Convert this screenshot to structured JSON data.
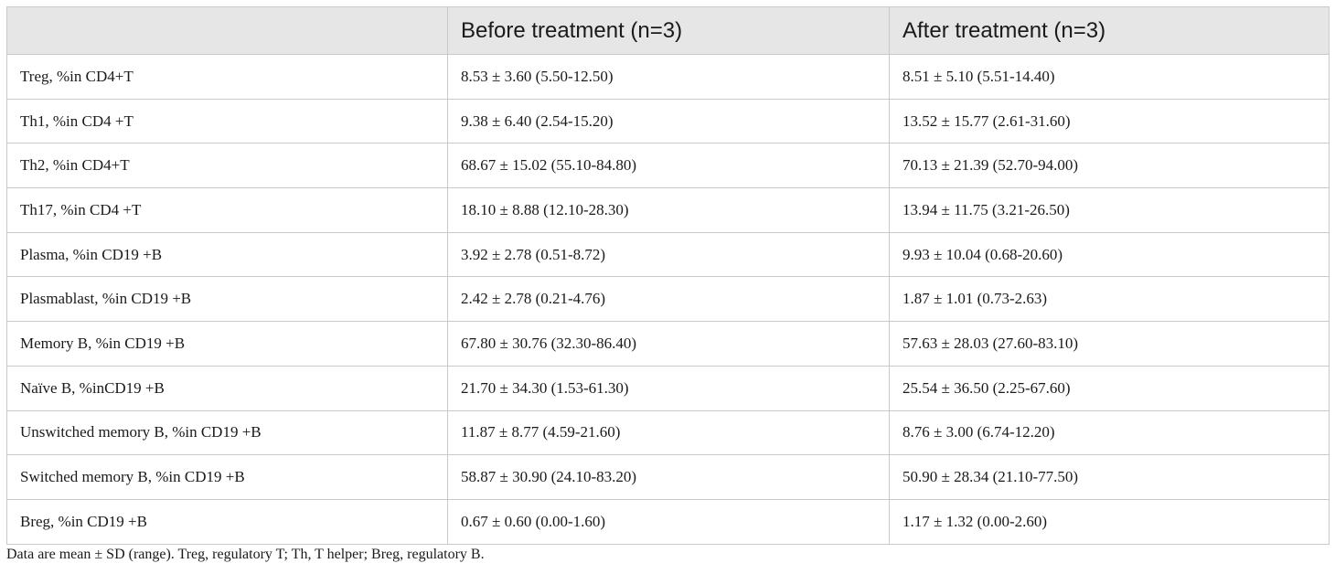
{
  "table": {
    "headers": [
      "",
      "Before treatment (n=3)",
      "After treatment (n=3)"
    ],
    "rows": [
      [
        "Treg, %in CD4+T",
        "8.53 ± 3.60 (5.50-12.50)",
        "8.51 ± 5.10 (5.51-14.40)"
      ],
      [
        "Th1, %in CD4 +T",
        "9.38 ± 6.40 (2.54-15.20)",
        "13.52 ± 15.77 (2.61-31.60)"
      ],
      [
        "Th2, %in CD4+T",
        "68.67 ± 15.02 (55.10-84.80)",
        "70.13 ± 21.39 (52.70-94.00)"
      ],
      [
        "Th17, %in CD4 +T",
        "18.10 ± 8.88 (12.10-28.30)",
        "13.94 ± 11.75 (3.21-26.50)"
      ],
      [
        "Plasma, %in CD19 +B",
        "3.92 ± 2.78 (0.51-8.72)",
        "9.93 ± 10.04 (0.68-20.60)"
      ],
      [
        "Plasmablast, %in CD19 +B",
        "2.42 ± 2.78 (0.21-4.76)",
        "1.87 ± 1.01 (0.73-2.63)"
      ],
      [
        "Memory B, %in CD19 +B",
        "67.80 ± 30.76 (32.30-86.40)",
        "57.63 ± 28.03 (27.60-83.10)"
      ],
      [
        "Naïve B, %inCD19 +B",
        "21.70 ± 34.30 (1.53-61.30)",
        "25.54 ± 36.50 (2.25-67.60)"
      ],
      [
        "Unswitched memory B, %in CD19 +B",
        "11.87 ± 8.77 (4.59-21.60)",
        "8.76 ± 3.00 (6.74-12.20)"
      ],
      [
        "Switched memory B, %in CD19 +B",
        "58.87 ± 30.90 (24.10-83.20)",
        "50.90 ± 28.34 (21.10-77.50)"
      ],
      [
        "Breg, %in CD19 +B",
        "0.67 ± 0.60 (0.00-1.60)",
        "1.17 ± 1.32 (0.00-2.60)"
      ]
    ]
  },
  "footnote": "Data are mean ± SD (range). Treg, regulatory T; Th, T helper; Breg, regulatory B."
}
